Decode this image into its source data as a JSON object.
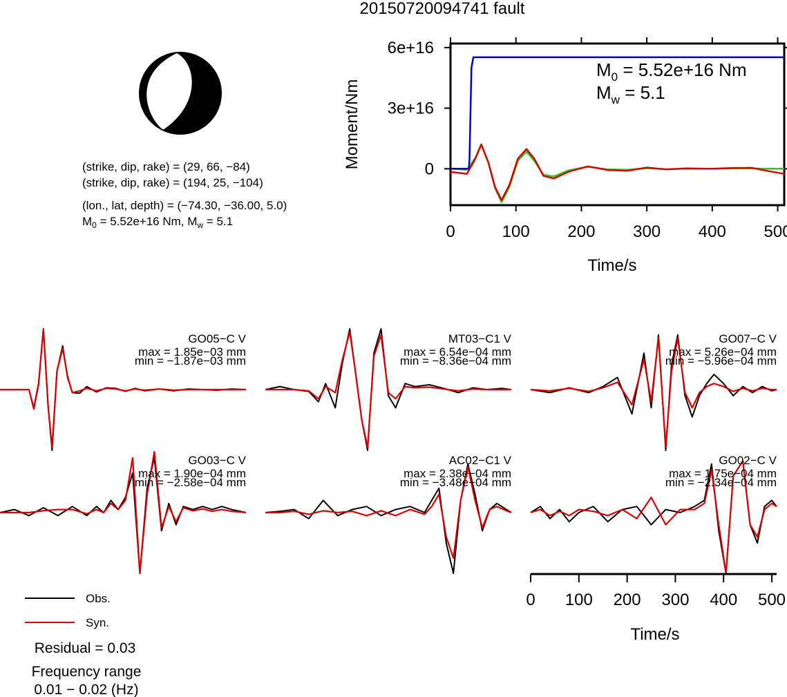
{
  "page": {
    "title": "20150720094741 fault"
  },
  "mechanism": {
    "lines": [
      "(strike, dip, rake) = (29, 66, −84)",
      "(strike, dip, rake) = (194, 25, −104)",
      "(lon., lat, depth) = (−74.30, −36.00, 5.0)"
    ],
    "moment_line": {
      "m0_symbol": "M",
      "m0_sub": "0",
      "m0_value": " = 5.52e+16 Nm, ",
      "mw_symbol": "M",
      "mw_sub": "w",
      "mw_value": " = 5.1"
    }
  },
  "legend": {
    "items": [
      {
        "label": "Obs.",
        "color": "#000000"
      },
      {
        "label": "Syn.",
        "color": "#dd0000"
      }
    ],
    "residual": "Residual = 0.03",
    "freq_label": "Frequency range",
    "freq_value": "0.01 − 0.02 (Hz)"
  },
  "colors": {
    "obs": "#000000",
    "syn": "#dd0000",
    "moment": "#0000cc",
    "stf_obs": "#dd0000",
    "stf_syn": "#22cc22"
  },
  "chart_data": [
    {
      "type": "line",
      "title": "",
      "xlabel": "Time/s",
      "ylabel": "Moment/Nm",
      "xlim": [
        0,
        510
      ],
      "ylim": [
        -18000000000000000,
        62000000000000000
      ],
      "x_ticks": [
        "0",
        "100",
        "200",
        "300",
        "400",
        "500"
      ],
      "x_tick_values": [
        0,
        100,
        200,
        300,
        400,
        500
      ],
      "y_ticks": [
        "0",
        "3e+16",
        "6e+16"
      ],
      "y_tick_values": [
        0,
        30000000000000000,
        60000000000000000
      ],
      "annotation": {
        "m0_symbol": "M",
        "m0_sub": "0",
        "m0_value": " = 5.52e+16 Nm",
        "mw_symbol": "M",
        "mw_sub": "w",
        "mw_value": " = 5.1"
      },
      "series": [
        {
          "color": "#0000cc",
          "x": [
            0,
            28,
            29,
            32,
            35,
            510
          ],
          "y": [
            0,
            0,
            5000000000000000,
            50000000000000000,
            55200000000000000,
            55200000000000000
          ]
        },
        {
          "color": "#dd0000",
          "x": [
            0,
            25,
            38,
            47,
            58,
            68,
            78,
            90,
            103,
            116,
            128,
            142,
            158,
            180,
            210,
            240,
            270,
            300,
            330,
            360,
            400,
            430,
            460,
            480,
            510
          ],
          "y": [
            -1500000000000000,
            -2500000000000000,
            5000000000000000,
            12000000000000000,
            3000000000000000,
            -9000000000000000,
            -15500000000000000,
            -8000000000000000,
            5000000000000000,
            9800000000000000,
            5000000000000000,
            -3500000000000000,
            -4800000000000000,
            -1500000000000000,
            1200000000000000,
            -600000000000000,
            -1000000000000000,
            600000000000000,
            -300000000000000,
            200000000000000,
            0,
            400000000000000,
            500000000000000,
            -800000000000000,
            -2500000000000000
          ]
        },
        {
          "color": "#22cc22",
          "x": [
            0,
            25,
            38,
            47,
            58,
            68,
            78,
            90,
            103,
            116,
            128,
            142,
            158,
            180,
            210,
            240,
            270,
            300,
            330,
            360,
            400,
            430,
            460,
            480,
            510
          ],
          "y": [
            0,
            -500000000000000,
            5500000000000000,
            12200000000000000,
            3000000000000000,
            -9500000000000000,
            -16500000000000000,
            -9000000000000000,
            4000000000000000,
            8500000000000000,
            4000000000000000,
            -3000000000000000,
            -3800000000000000,
            -800000000000000,
            1000000000000000,
            -300000000000000,
            -500000000000000,
            300000000000000,
            -200000000000000,
            100000000000000,
            0,
            200000000000000,
            200000000000000,
            0,
            0
          ]
        }
      ]
    },
    {
      "type": "line",
      "title": "GO05−C V",
      "lines": [
        "max = 1.85e−03 mm",
        "min = −1.87e−03 mm"
      ],
      "xlim": [
        0,
        510
      ],
      "ylim": [
        -1,
        1
      ],
      "series": [
        {
          "name": "Obs.",
          "color": "#000000",
          "x": [
            0,
            60,
            70,
            80,
            90,
            100,
            108,
            118,
            130,
            140,
            150,
            165,
            180,
            200,
            220,
            240,
            260,
            280,
            300,
            330,
            360,
            390,
            420,
            450,
            480,
            510
          ],
          "y": [
            0,
            0,
            -0.3,
            0.1,
            1.0,
            -0.3,
            -1.0,
            0.3,
            0.72,
            0.2,
            -0.05,
            -0.06,
            0.05,
            -0.04,
            0.03,
            0.02,
            -0.03,
            0.02,
            -0.02,
            0.01,
            -0.02,
            0.01,
            0.0,
            -0.01,
            0.01,
            0.0
          ]
        },
        {
          "name": "Syn.",
          "color": "#dd0000",
          "x": [
            0,
            60,
            70,
            80,
            90,
            100,
            108,
            118,
            130,
            140,
            150,
            165,
            180,
            200,
            220,
            240,
            260,
            280,
            300,
            330,
            360,
            390,
            420,
            450,
            480,
            510
          ],
          "y": [
            0,
            0,
            -0.32,
            0.08,
            1.0,
            -0.3,
            -0.95,
            0.3,
            0.68,
            0.22,
            -0.05,
            -0.02,
            0.02,
            -0.02,
            0.02,
            0.01,
            -0.02,
            0.01,
            -0.01,
            0.01,
            -0.01,
            0.0,
            0.0,
            0.0,
            0.0,
            0.0
          ]
        }
      ]
    },
    {
      "type": "line",
      "title": "MT03−C1 V",
      "lines": [
        "max = 6.54e−04 mm",
        "min = −8.36e−04 mm"
      ],
      "xlim": [
        0,
        510
      ],
      "ylim": [
        -1,
        1
      ],
      "series": [
        {
          "name": "Obs.",
          "color": "#000000",
          "x": [
            0,
            30,
            60,
            90,
            110,
            125,
            145,
            160,
            175,
            185,
            200,
            212,
            225,
            240,
            255,
            270,
            290,
            310,
            340,
            370,
            400,
            430,
            460,
            490,
            510
          ],
          "y": [
            0,
            0.05,
            0.0,
            -0.03,
            -0.2,
            0.1,
            -0.3,
            0.45,
            1.0,
            0.4,
            -0.5,
            -1.0,
            0.6,
            1.0,
            -0.1,
            -0.3,
            0.1,
            0.05,
            0.08,
            0.02,
            -0.05,
            0.03,
            0.0,
            0.02,
            0.0
          ]
        },
        {
          "name": "Syn.",
          "color": "#dd0000",
          "x": [
            0,
            30,
            60,
            90,
            110,
            125,
            145,
            160,
            175,
            185,
            200,
            212,
            225,
            240,
            255,
            270,
            290,
            310,
            340,
            370,
            400,
            430,
            460,
            490,
            510
          ],
          "y": [
            0,
            0.0,
            0.0,
            -0.02,
            -0.15,
            0.05,
            -0.05,
            0.5,
            0.95,
            0.4,
            -0.5,
            -0.95,
            0.55,
            0.9,
            -0.05,
            -0.15,
            0.05,
            0.03,
            0.04,
            0.01,
            -0.02,
            0.01,
            0.0,
            0.0,
            0.0
          ]
        }
      ]
    },
    {
      "type": "line",
      "title": "GO07−C V",
      "lines": [
        "max = 5.26e−04 mm",
        "min = −5.96e−04 mm"
      ],
      "xlim": [
        0,
        510
      ],
      "ylim": [
        -1,
        1
      ],
      "series": [
        {
          "name": "Obs.",
          "color": "#000000",
          "x": [
            0,
            40,
            80,
            120,
            150,
            180,
            210,
            235,
            250,
            265,
            280,
            292,
            305,
            320,
            335,
            350,
            365,
            380,
            400,
            420,
            440,
            460,
            480,
            500,
            510
          ],
          "y": [
            0,
            -0.05,
            0.03,
            -0.05,
            0.05,
            0.2,
            -0.4,
            0.6,
            -0.3,
            0.9,
            -1.0,
            0.4,
            0.9,
            -0.1,
            -0.45,
            -0.1,
            0.1,
            0.25,
            0.1,
            -0.1,
            0.05,
            -0.05,
            0.05,
            -0.02,
            0.0
          ]
        },
        {
          "name": "Syn.",
          "color": "#dd0000",
          "x": [
            0,
            40,
            80,
            120,
            150,
            180,
            210,
            235,
            250,
            265,
            280,
            292,
            305,
            320,
            335,
            350,
            365,
            380,
            400,
            420,
            440,
            460,
            480,
            500,
            510
          ],
          "y": [
            0,
            -0.02,
            0.02,
            -0.03,
            0.03,
            0.12,
            -0.25,
            0.5,
            -0.2,
            0.85,
            -0.95,
            0.3,
            0.85,
            -0.05,
            -0.3,
            -0.05,
            0.05,
            0.1,
            0.05,
            -0.03,
            0.02,
            -0.02,
            0.02,
            0.0,
            0.0
          ]
        }
      ]
    },
    {
      "type": "line",
      "title": "GO03−C V",
      "lines": [
        "max = 1.90e−04 mm",
        "min = −2.58e−04 mm"
      ],
      "xlim": [
        0,
        510
      ],
      "ylim": [
        -1,
        1
      ],
      "series": [
        {
          "name": "Obs.",
          "color": "#000000",
          "x": [
            0,
            30,
            60,
            90,
            120,
            150,
            180,
            200,
            215,
            230,
            245,
            260,
            275,
            290,
            305,
            320,
            335,
            350,
            365,
            380,
            400,
            420,
            440,
            460,
            480,
            510
          ],
          "y": [
            0,
            0.05,
            -0.05,
            0.08,
            -0.05,
            0.1,
            -0.05,
            0.1,
            0.0,
            0.2,
            0.05,
            0.25,
            0.65,
            -1.0,
            0.4,
            0.9,
            -0.3,
            0.15,
            -0.2,
            0.1,
            0.05,
            0.1,
            0.05,
            0.1,
            0.05,
            0.0
          ]
        },
        {
          "name": "Syn.",
          "color": "#dd0000",
          "x": [
            0,
            30,
            60,
            90,
            120,
            150,
            180,
            200,
            215,
            230,
            245,
            260,
            275,
            290,
            305,
            320,
            335,
            350,
            365,
            380,
            400,
            420,
            440,
            460,
            480,
            510
          ],
          "y": [
            0,
            0.0,
            0.0,
            0.03,
            0.05,
            0.05,
            -0.02,
            0.05,
            0.0,
            0.15,
            0.05,
            0.2,
            0.9,
            -1.0,
            0.3,
            1.0,
            -0.25,
            0.1,
            -0.15,
            0.08,
            0.03,
            0.06,
            0.02,
            0.05,
            0.02,
            0.0
          ]
        }
      ]
    },
    {
      "type": "line",
      "title": "AC02−C1 V",
      "lines": [
        "max = 2.38e−04 mm",
        "min = −3.48e−04 mm"
      ],
      "xlim": [
        0,
        510
      ],
      "ylim": [
        -1,
        1
      ],
      "series": [
        {
          "name": "Obs.",
          "color": "#000000",
          "x": [
            0,
            30,
            60,
            90,
            120,
            150,
            180,
            210,
            240,
            270,
            300,
            330,
            345,
            360,
            375,
            390,
            405,
            420,
            435,
            450,
            465,
            480,
            500,
            510
          ],
          "y": [
            0,
            0.02,
            0.05,
            -0.1,
            0.2,
            -0.05,
            0.05,
            0.1,
            -0.05,
            0.05,
            0.1,
            0.0,
            0.2,
            0.4,
            -0.5,
            -1.0,
            0.2,
            0.8,
            0.3,
            -0.3,
            0.05,
            0.15,
            0.05,
            0.0
          ]
        },
        {
          "name": "Syn.",
          "color": "#dd0000",
          "x": [
            0,
            30,
            60,
            90,
            120,
            150,
            180,
            210,
            240,
            270,
            300,
            330,
            345,
            360,
            375,
            390,
            405,
            420,
            435,
            450,
            465,
            480,
            500,
            510
          ],
          "y": [
            0,
            0.0,
            0.02,
            -0.03,
            0.03,
            0.0,
            0.02,
            -0.05,
            0.03,
            -0.05,
            0.05,
            -0.03,
            0.1,
            0.3,
            -0.4,
            -0.75,
            0.2,
            0.75,
            0.2,
            -0.25,
            0.05,
            0.1,
            0.03,
            0.0
          ]
        }
      ]
    },
    {
      "type": "line",
      "title": "GO02−C V",
      "lines": [
        "max = 1.75e−04 mm",
        "min = −2.34e−04 mm"
      ],
      "xlim": [
        0,
        510
      ],
      "ylim": [
        -1,
        1
      ],
      "x_ticks": [
        "0",
        "100",
        "200",
        "300",
        "400",
        "500"
      ],
      "x_tick_values": [
        0,
        100,
        200,
        300,
        400,
        500
      ],
      "xlabel": "Time/s",
      "series": [
        {
          "name": "Obs.",
          "color": "#000000",
          "x": [
            0,
            20,
            40,
            60,
            80,
            100,
            130,
            160,
            190,
            220,
            250,
            280,
            310,
            340,
            360,
            375,
            390,
            405,
            420,
            440,
            455,
            470,
            485,
            500,
            510
          ],
          "y": [
            0,
            0.1,
            -0.1,
            0.05,
            -0.15,
            0.0,
            0.1,
            -0.15,
            0.05,
            0.1,
            -0.2,
            0.05,
            0.0,
            0.1,
            0.2,
            0.8,
            -0.3,
            -1.0,
            0.6,
            0.85,
            -0.2,
            -0.5,
            0.1,
            0.2,
            0.1
          ]
        },
        {
          "name": "Syn.",
          "color": "#dd0000",
          "x": [
            0,
            20,
            40,
            60,
            80,
            100,
            130,
            160,
            190,
            220,
            250,
            280,
            310,
            340,
            360,
            375,
            390,
            405,
            420,
            440,
            455,
            470,
            485,
            500,
            510
          ],
          "y": [
            0,
            0.05,
            -0.05,
            0.02,
            -0.05,
            0.05,
            0.02,
            -0.05,
            0.05,
            -0.1,
            0.25,
            -0.2,
            0.05,
            0.05,
            0.15,
            0.7,
            -0.2,
            -1.0,
            0.6,
            0.85,
            -0.2,
            -0.4,
            0.05,
            0.15,
            0.1
          ]
        }
      ]
    }
  ]
}
